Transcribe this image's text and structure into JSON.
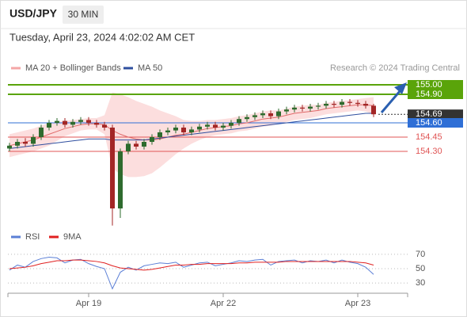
{
  "header": {
    "symbol": "USD/JPY",
    "timeframe": "30 MIN",
    "datetime": "Tuesday, April 23, 2024 4:02:02 AM CET"
  },
  "chart_data": [
    {
      "type": "candlestick",
      "source": "Research © 2024 Trading Central",
      "categories": [
        null,
        null,
        null,
        null,
        null,
        null,
        null,
        null,
        null,
        null,
        "Apr 19",
        null,
        null,
        null,
        null,
        null,
        null,
        null,
        null,
        null,
        null,
        null,
        null,
        null,
        null,
        null,
        null,
        "Apr 22",
        null,
        null,
        null,
        null,
        null,
        null,
        null,
        null,
        null,
        null,
        null,
        null,
        null,
        null,
        null,
        null,
        "Apr 23",
        null,
        null
      ],
      "open": [
        154.33,
        154.36,
        154.4,
        154.38,
        154.45,
        154.55,
        154.6,
        154.62,
        154.58,
        154.61,
        154.63,
        154.6,
        154.58,
        154.55,
        153.7,
        154.3,
        154.38,
        154.35,
        154.4,
        154.45,
        154.5,
        154.52,
        154.55,
        154.5,
        154.53,
        154.56,
        154.58,
        154.55,
        154.57,
        154.6,
        154.64,
        154.66,
        154.68,
        154.7,
        154.67,
        154.72,
        154.74,
        154.76,
        154.75,
        154.77,
        154.78,
        154.8,
        154.79,
        154.82,
        154.81,
        154.8,
        154.78
      ],
      "high": [
        154.39,
        154.43,
        154.44,
        154.48,
        154.58,
        154.63,
        154.65,
        154.65,
        154.64,
        154.66,
        154.66,
        154.63,
        154.61,
        154.58,
        154.33,
        154.41,
        154.41,
        154.43,
        154.48,
        154.53,
        154.55,
        154.58,
        154.58,
        154.56,
        154.59,
        154.61,
        154.61,
        154.6,
        154.63,
        154.67,
        154.69,
        154.71,
        154.73,
        154.73,
        154.75,
        154.77,
        154.79,
        154.79,
        154.8,
        154.81,
        154.83,
        154.83,
        154.85,
        154.85,
        154.84,
        154.83,
        154.8
      ],
      "low": [
        154.3,
        154.33,
        154.35,
        154.35,
        154.42,
        154.52,
        154.57,
        154.55,
        154.55,
        154.58,
        154.57,
        154.55,
        154.52,
        153.52,
        153.6,
        154.27,
        154.32,
        154.32,
        154.37,
        154.42,
        154.47,
        154.49,
        154.47,
        154.47,
        154.5,
        154.53,
        154.52,
        154.52,
        154.54,
        154.57,
        154.61,
        154.63,
        154.65,
        154.64,
        154.64,
        154.69,
        154.71,
        154.72,
        154.72,
        154.74,
        154.75,
        154.76,
        154.76,
        154.78,
        154.77,
        154.75,
        154.66
      ],
      "close": [
        154.36,
        154.4,
        154.38,
        154.45,
        154.55,
        154.6,
        154.62,
        154.58,
        154.61,
        154.63,
        154.6,
        154.58,
        154.55,
        153.7,
        154.3,
        154.38,
        154.35,
        154.4,
        154.45,
        154.5,
        154.52,
        154.55,
        154.5,
        154.53,
        154.56,
        154.58,
        154.55,
        154.57,
        154.6,
        154.64,
        154.66,
        154.68,
        154.7,
        154.67,
        154.72,
        154.74,
        154.76,
        154.75,
        154.77,
        154.78,
        154.8,
        154.79,
        154.82,
        154.81,
        154.8,
        154.78,
        154.69
      ],
      "up_color": "#2e6b2e",
      "down_color": "#a32626",
      "ylim": [
        153.5,
        155.1
      ],
      "series": [
        {
          "name": "MA 20 + Bollinger Bands",
          "color": "#f4a7a7",
          "band_color": "#fbd6d6",
          "values": [
            154.36,
            154.38,
            154.4,
            154.42,
            154.45,
            154.48,
            154.51,
            154.54,
            154.56,
            154.58,
            154.59,
            154.59,
            154.58,
            154.52,
            154.48,
            154.45,
            154.43,
            154.42,
            154.42,
            154.43,
            154.45,
            154.47,
            154.48,
            154.5,
            154.52,
            154.54,
            154.55,
            154.56,
            154.57,
            154.59,
            154.6,
            154.62,
            154.64,
            154.65,
            154.66,
            154.68,
            154.7,
            154.71,
            154.72,
            154.73,
            154.75,
            154.76,
            154.77,
            154.78,
            154.79,
            154.79,
            154.78
          ],
          "upper": [
            154.48,
            154.5,
            154.52,
            154.54,
            154.57,
            154.6,
            154.61,
            154.62,
            154.63,
            154.64,
            154.65,
            154.65,
            154.68,
            154.92,
            154.9,
            154.87,
            154.83,
            154.8,
            154.77,
            154.73,
            154.7,
            154.67,
            154.63,
            154.62,
            154.62,
            154.63,
            154.63,
            154.64,
            154.65,
            154.67,
            154.68,
            154.7,
            154.72,
            154.73,
            154.73,
            154.75,
            154.77,
            154.78,
            154.79,
            154.79,
            154.81,
            154.82,
            154.83,
            154.84,
            154.85,
            154.86,
            154.87
          ],
          "lower": [
            154.24,
            154.26,
            154.28,
            154.3,
            154.33,
            154.36,
            154.41,
            154.46,
            154.49,
            154.52,
            154.53,
            154.53,
            154.48,
            154.12,
            154.06,
            154.03,
            154.03,
            154.04,
            154.07,
            154.13,
            154.2,
            154.27,
            154.33,
            154.38,
            154.42,
            154.45,
            154.47,
            154.48,
            154.49,
            154.51,
            154.52,
            154.54,
            154.56,
            154.57,
            154.59,
            154.61,
            154.63,
            154.64,
            154.65,
            154.67,
            154.69,
            154.7,
            154.71,
            154.72,
            154.73,
            154.72,
            154.69
          ]
        },
        {
          "name": "MA 50",
          "color": "#2f4f9f",
          "values": [
            154.33,
            154.34,
            154.35,
            154.36,
            154.37,
            154.38,
            154.39,
            154.4,
            154.41,
            154.42,
            154.43,
            154.43,
            154.43,
            154.42,
            154.42,
            154.42,
            154.42,
            154.42,
            154.43,
            154.44,
            154.45,
            154.46,
            154.47,
            154.48,
            154.49,
            154.5,
            154.51,
            154.52,
            154.53,
            154.54,
            154.55,
            154.56,
            154.57,
            154.58,
            154.59,
            154.6,
            154.61,
            154.62,
            154.63,
            154.64,
            154.65,
            154.66,
            154.67,
            154.68,
            154.69,
            154.7,
            154.7
          ]
        }
      ],
      "levels": [
        {
          "value": 155,
          "label": "155.00",
          "color": "#5aa40a",
          "style": "box"
        },
        {
          "value": 154.9,
          "label": "154.90",
          "color": "#5aa40a",
          "style": "box"
        },
        {
          "value": 154.69,
          "label": "154.69",
          "color": "#333333",
          "style": "current"
        },
        {
          "value": 154.6,
          "label": "154.60",
          "color": "#2f6fd6",
          "style": "box"
        },
        {
          "value": 154.45,
          "label": "154.45",
          "color": "#e05555",
          "style": "text"
        },
        {
          "value": 154.3,
          "label": "154.30",
          "color": "#e05555",
          "style": "text"
        }
      ]
    },
    {
      "type": "line",
      "ylim": [
        18,
        82
      ],
      "yticks": [
        70,
        50,
        30
      ],
      "series": [
        {
          "name": "RSI",
          "color": "#5b7fd6",
          "values": [
            48,
            55,
            52,
            60,
            64,
            66,
            65,
            58,
            62,
            63,
            57,
            53,
            50,
            22,
            45,
            52,
            48,
            54,
            56,
            58,
            57,
            59,
            52,
            55,
            58,
            59,
            54,
            56,
            58,
            61,
            60,
            62,
            63,
            55,
            60,
            61,
            62,
            58,
            61,
            60,
            62,
            58,
            62,
            59,
            57,
            52,
            42
          ]
        },
        {
          "name": "9MA",
          "color": "#e02020",
          "values": [
            50,
            51,
            52,
            54,
            57,
            59,
            61,
            61,
            62,
            62,
            61,
            60,
            58,
            54,
            51,
            50,
            49,
            48,
            49,
            51,
            53,
            55,
            55,
            56,
            56,
            57,
            57,
            57,
            57,
            58,
            58,
            59,
            59,
            59,
            59,
            60,
            60,
            60,
            60,
            60,
            60,
            60,
            60,
            60,
            59,
            58,
            55
          ]
        }
      ]
    }
  ]
}
